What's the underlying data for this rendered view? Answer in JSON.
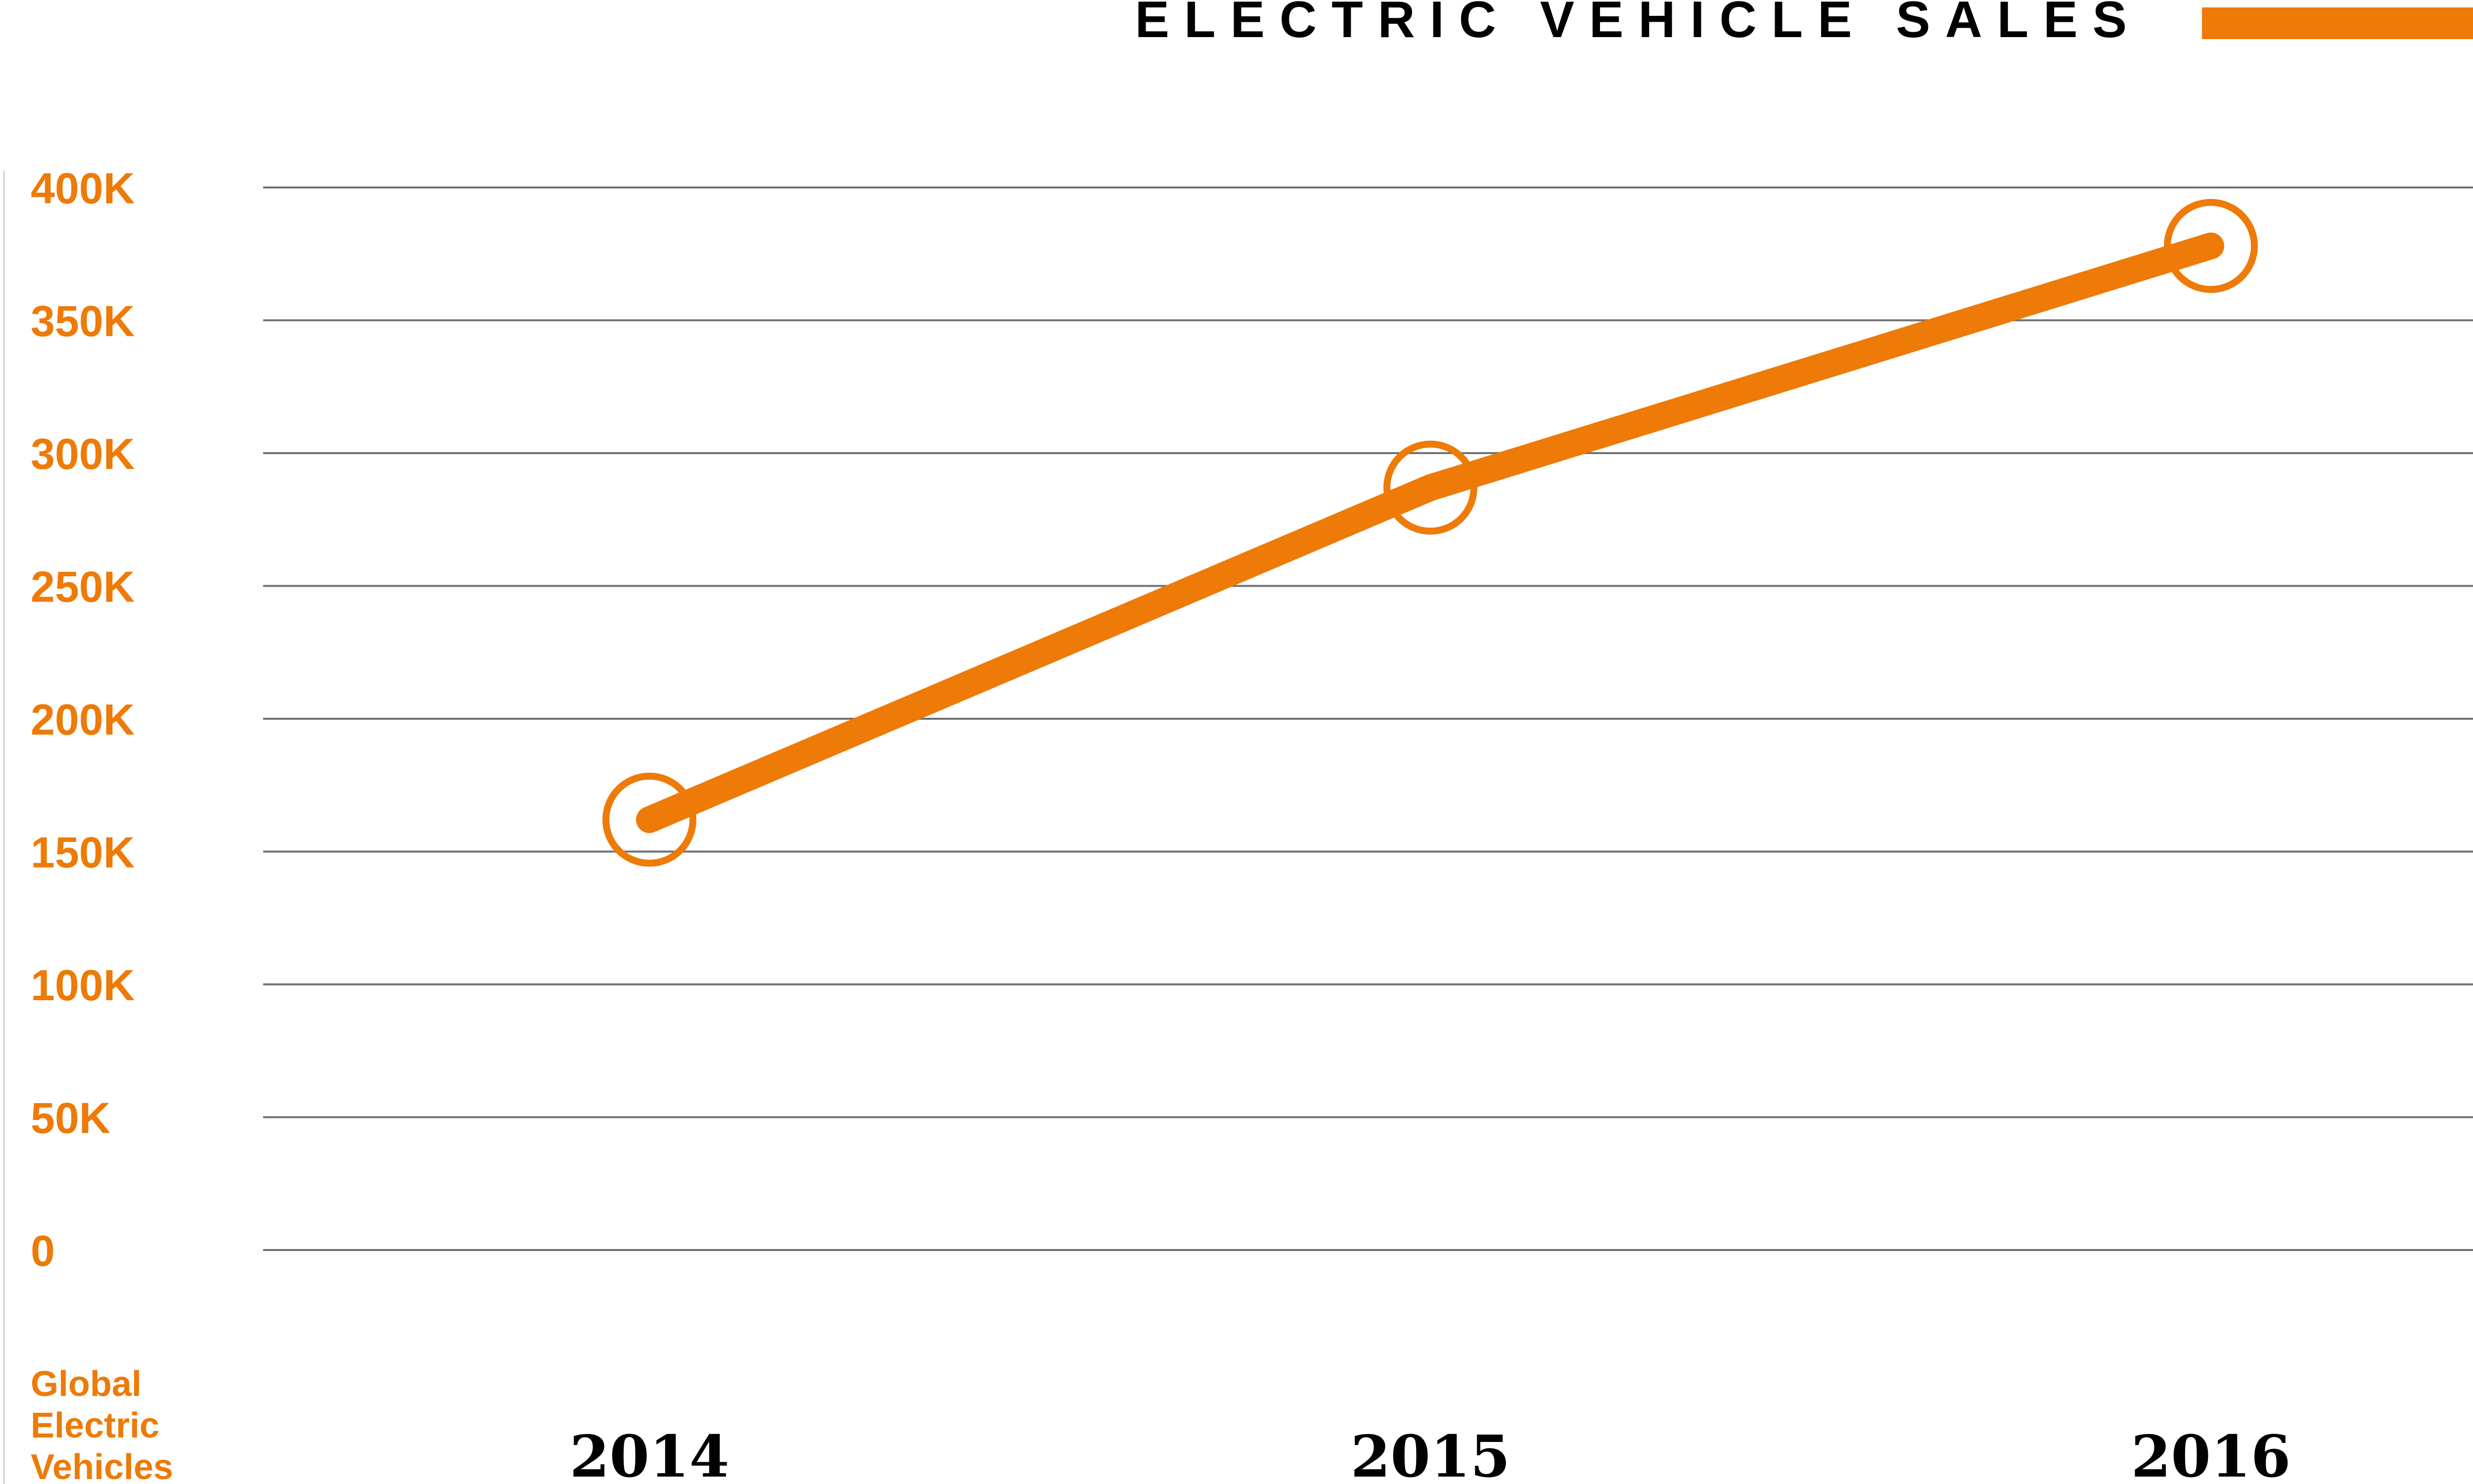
{
  "chart_data": {
    "type": "line",
    "title": "",
    "xlabel": "",
    "ylabel": [
      "Global",
      "Electric",
      "Vehicles"
    ],
    "categories": [
      "2014",
      "2015",
      "2016"
    ],
    "series": [
      {
        "name": "ELECTRIC VEHICLE SALES",
        "values": [
          162000,
          287000,
          378000
        ],
        "color": "#EE7A07"
      }
    ],
    "ylim": [
      0,
      400000
    ],
    "yticks": [
      {
        "value": 0,
        "label": "0"
      },
      {
        "value": 50000,
        "label": "50K"
      },
      {
        "value": 100000,
        "label": "100K"
      },
      {
        "value": 150000,
        "label": "150K"
      },
      {
        "value": 200000,
        "label": "200K"
      },
      {
        "value": 250000,
        "label": "250K"
      },
      {
        "value": 300000,
        "label": "300K"
      },
      {
        "value": 350000,
        "label": "350K"
      },
      {
        "value": 400000,
        "label": "400K"
      }
    ],
    "grid": true,
    "legend_position": "top-right",
    "colors": {
      "accent": "#EE7A07",
      "text": "#000000",
      "grid": "#707070"
    }
  }
}
